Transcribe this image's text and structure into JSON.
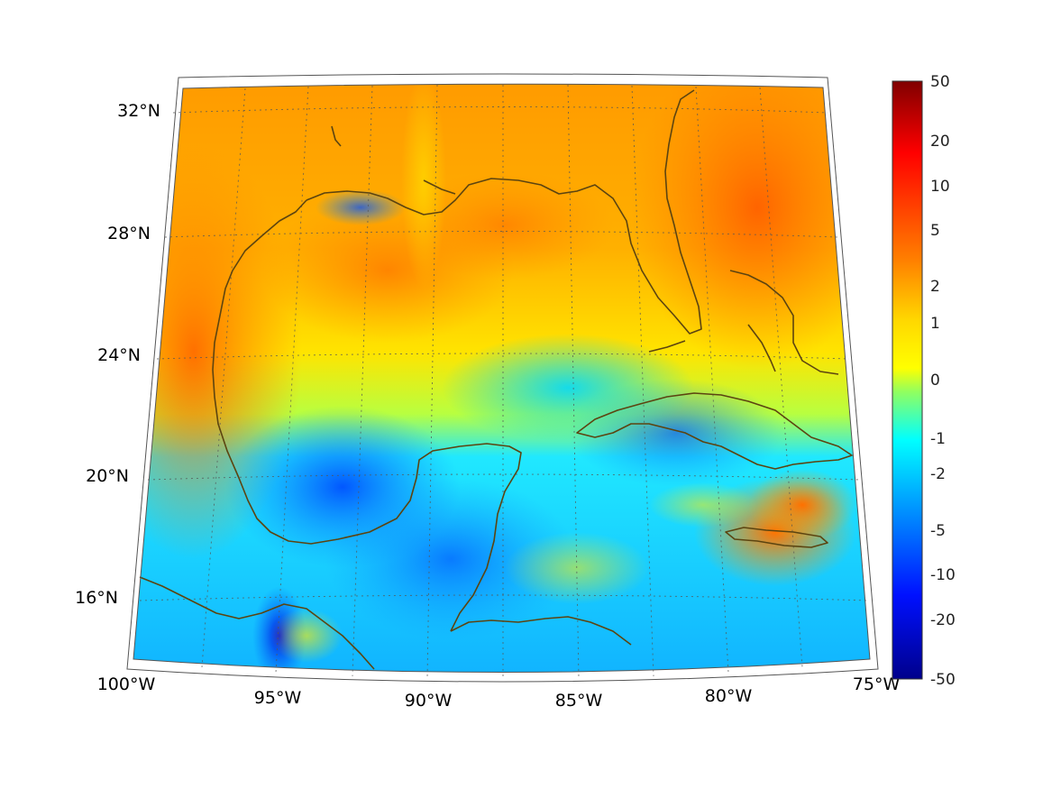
{
  "map": {
    "longitude_ticks": [
      "100°W",
      "95°W",
      "90°W",
      "85°W",
      "80°W",
      "75°W"
    ],
    "latitude_ticks": [
      "32°N",
      "28°N",
      "24°N",
      "20°N",
      "16°N"
    ],
    "extent": {
      "lon_min": -100,
      "lon_max": -75,
      "lat_min": 14,
      "lat_max": 33
    },
    "projection": "conic",
    "graticule": "dotted",
    "coastline_color": "#5c4410"
  },
  "colorbar": {
    "tick_labels": [
      "50",
      "20",
      "10",
      "5",
      "2",
      "1",
      "0",
      "-1",
      "-2",
      "-5",
      "-10",
      "-20",
      "-50"
    ],
    "colormap": "jet",
    "position": "right"
  }
}
